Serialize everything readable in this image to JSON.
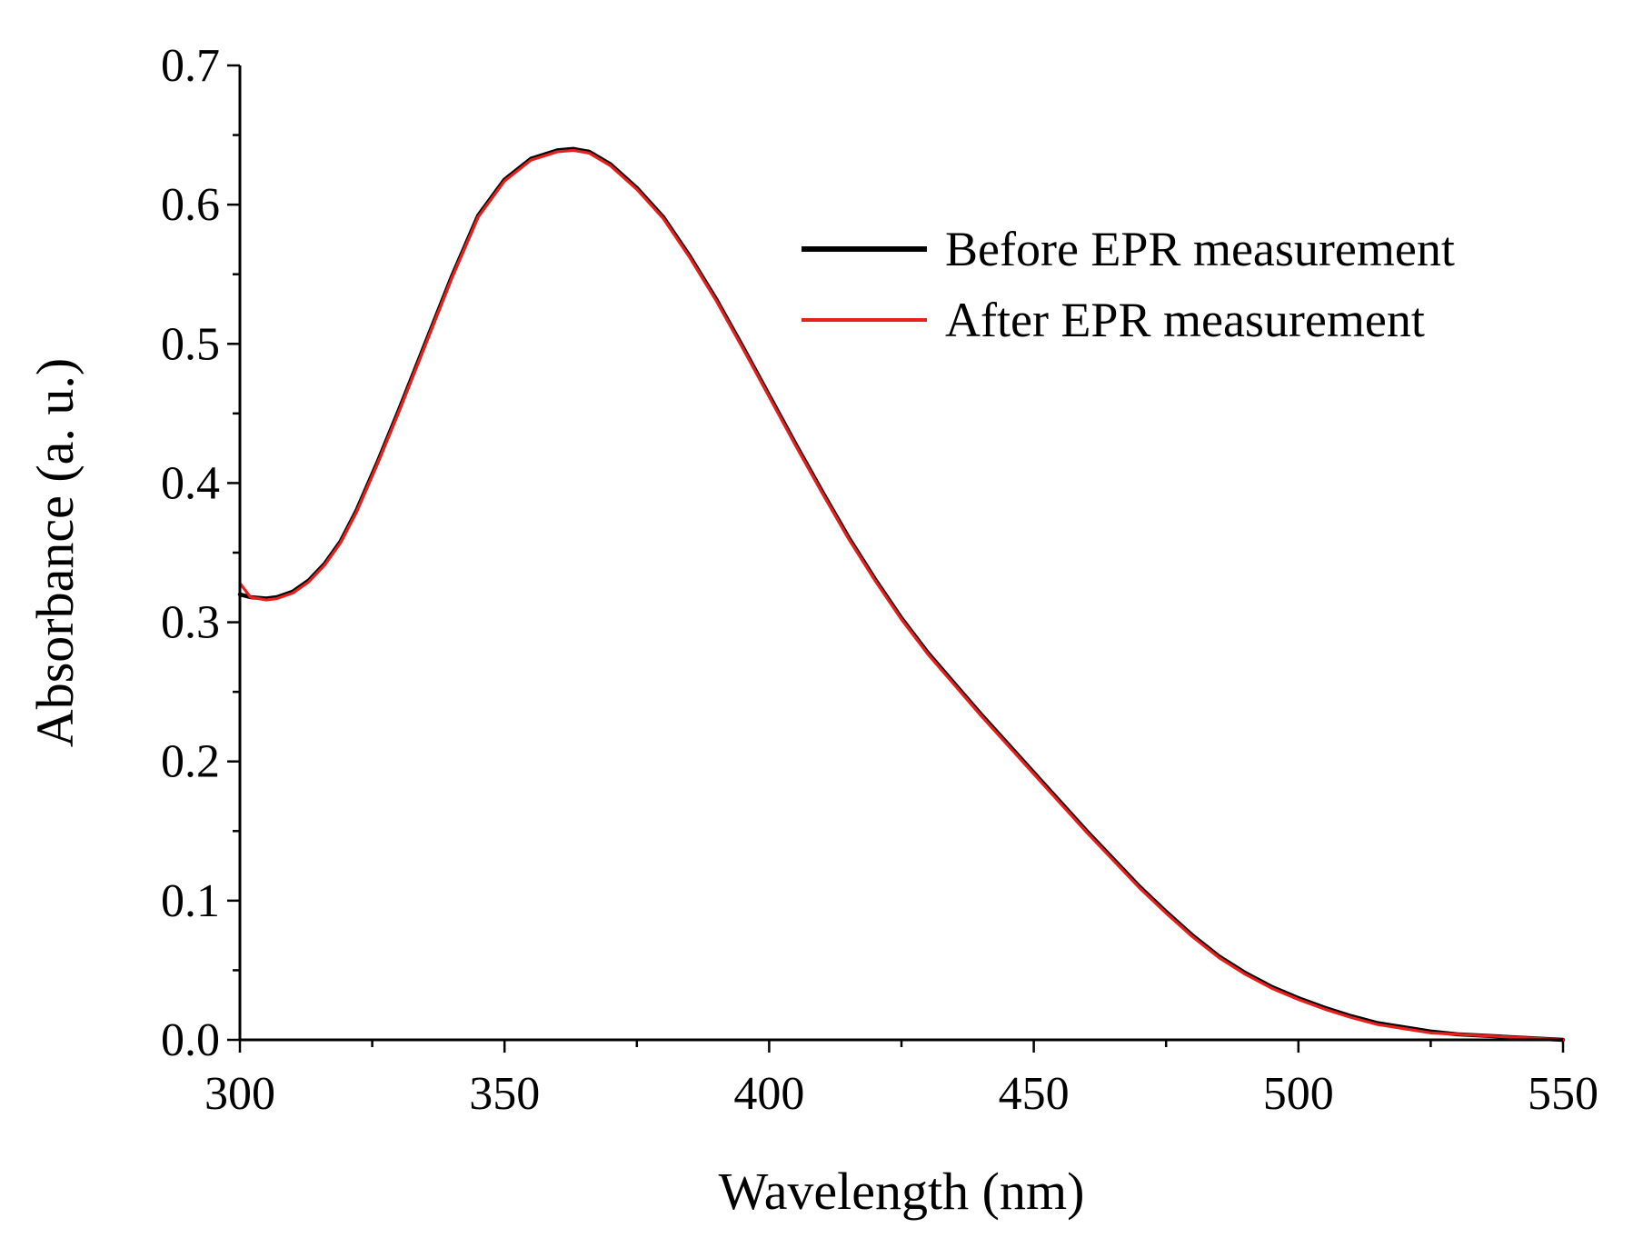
{
  "chart_data": {
    "type": "line",
    "title": "",
    "xlabel": "Wavelength (nm)",
    "ylabel": "Absorbance (a. u.)",
    "xlim": [
      300,
      550
    ],
    "ylim": [
      0.0,
      0.7
    ],
    "xticks": [
      300,
      350,
      400,
      450,
      500,
      550
    ],
    "xtick_labels": [
      "300",
      "350",
      "400",
      "450",
      "500",
      "550"
    ],
    "yticks": [
      0.0,
      0.1,
      0.2,
      0.3,
      0.4,
      0.5,
      0.6,
      0.7
    ],
    "ytick_labels": [
      "0.0",
      "0.1",
      "0.2",
      "0.3",
      "0.4",
      "0.5",
      "0.6",
      "0.7"
    ],
    "grid": false,
    "legend_position": "top-right",
    "series": [
      {
        "name": "Before EPR measurement",
        "color": "#000000",
        "x": [
          300,
          302,
          305,
          307,
          310,
          313,
          316,
          319,
          322,
          326,
          330,
          335,
          340,
          345,
          350,
          355,
          360,
          363,
          366,
          370,
          375,
          380,
          385,
          390,
          395,
          400,
          405,
          410,
          415,
          420,
          425,
          430,
          435,
          440,
          445,
          450,
          455,
          460,
          465,
          470,
          475,
          480,
          485,
          490,
          495,
          500,
          505,
          510,
          515,
          520,
          525,
          530,
          535,
          540,
          545,
          550
        ],
        "y": [
          0.32,
          0.318,
          0.317,
          0.318,
          0.322,
          0.33,
          0.342,
          0.358,
          0.38,
          0.415,
          0.452,
          0.5,
          0.548,
          0.592,
          0.618,
          0.633,
          0.639,
          0.64,
          0.638,
          0.629,
          0.612,
          0.591,
          0.563,
          0.532,
          0.498,
          0.463,
          0.428,
          0.394,
          0.361,
          0.331,
          0.303,
          0.278,
          0.256,
          0.234,
          0.213,
          0.192,
          0.171,
          0.15,
          0.13,
          0.11,
          0.092,
          0.075,
          0.06,
          0.048,
          0.038,
          0.03,
          0.023,
          0.017,
          0.012,
          0.009,
          0.006,
          0.004,
          0.003,
          0.002,
          0.001,
          0.0
        ]
      },
      {
        "name": "After EPR measurement",
        "color": "#e8201c",
        "x": [
          300,
          302,
          305,
          307,
          310,
          313,
          316,
          319,
          322,
          326,
          330,
          335,
          340,
          345,
          350,
          355,
          360,
          363,
          366,
          370,
          375,
          380,
          385,
          390,
          395,
          400,
          405,
          410,
          415,
          420,
          425,
          430,
          435,
          440,
          445,
          450,
          455,
          460,
          465,
          470,
          475,
          480,
          485,
          490,
          495,
          500,
          505,
          510,
          515,
          520,
          525,
          530,
          535,
          540,
          545,
          550
        ],
        "y": [
          0.328,
          0.318,
          0.316,
          0.317,
          0.321,
          0.329,
          0.341,
          0.357,
          0.379,
          0.414,
          0.451,
          0.499,
          0.547,
          0.591,
          0.617,
          0.632,
          0.638,
          0.639,
          0.637,
          0.628,
          0.611,
          0.59,
          0.562,
          0.531,
          0.497,
          0.462,
          0.427,
          0.393,
          0.36,
          0.33,
          0.302,
          0.277,
          0.255,
          0.233,
          0.212,
          0.191,
          0.17,
          0.149,
          0.129,
          0.109,
          0.091,
          0.074,
          0.059,
          0.047,
          0.037,
          0.029,
          0.022,
          0.016,
          0.011,
          0.008,
          0.005,
          0.004,
          0.003,
          0.002,
          0.001,
          0.0
        ]
      }
    ]
  }
}
